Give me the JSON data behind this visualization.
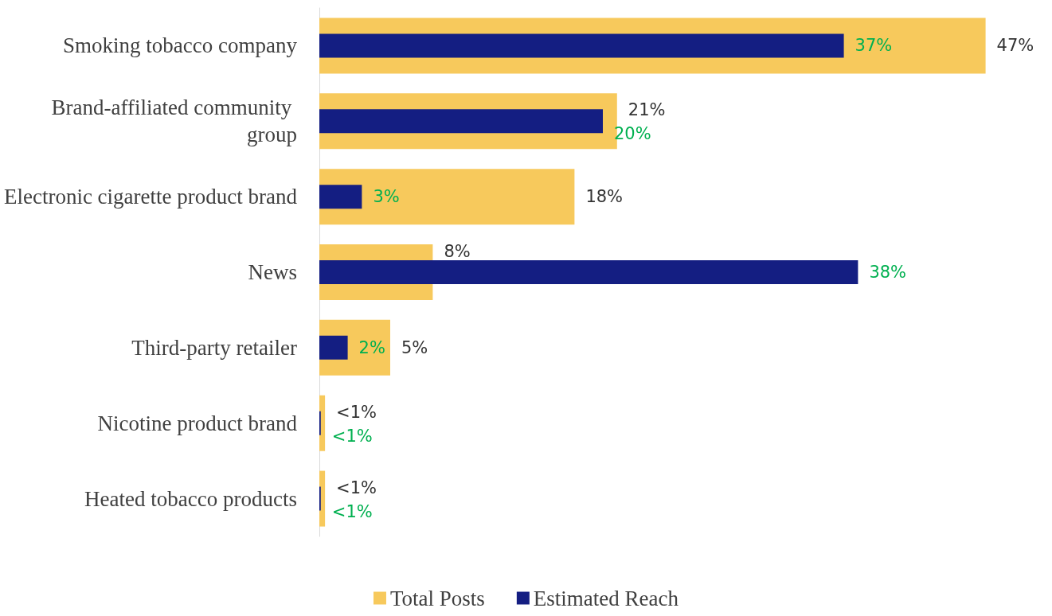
{
  "chart_data": {
    "type": "bar",
    "orientation": "horizontal",
    "categories": [
      "Smoking tobacco company",
      "Brand-affiliated community group",
      "Electronic cigarette product brand",
      "News",
      "Third-party retailer",
      "Nicotine product brand",
      "Heated tobacco products"
    ],
    "series": [
      {
        "name": "Total Posts",
        "color": "#f7c95c",
        "values": [
          47,
          21,
          18,
          8,
          5,
          0.4,
          0.4
        ],
        "value_labels": [
          "47%",
          "21%",
          "18%",
          "8%",
          "5%",
          "<1%",
          "<1%"
        ]
      },
      {
        "name": "Estimated Reach",
        "color": "#141e82",
        "values": [
          37,
          20,
          3,
          38,
          2,
          0.1,
          0.1
        ],
        "value_labels": [
          "37%",
          "20%",
          "3%",
          "38%",
          "2%",
          "<1%",
          "<1%"
        ]
      }
    ],
    "tick_labels": "y",
    "legend": "bottom"
  }
}
